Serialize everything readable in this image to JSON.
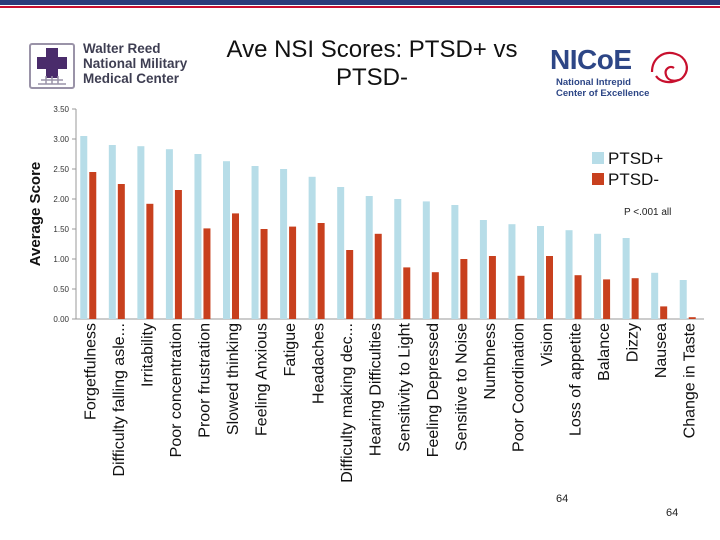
{
  "header": {
    "left_logo": {
      "line1": "Walter Reed",
      "line2": "National Military",
      "line3": "Medical Center",
      "icon": "cross-capitol-icon",
      "colors": {
        "cross": "#4a2c6b",
        "text": "#3e3e52"
      }
    },
    "right_logo": {
      "word": "NICoE",
      "line1": "National Intrepid",
      "line2": "Center of Excellence",
      "icon": "brain-spiral-icon",
      "colors": {
        "text": "#2d4686",
        "brain": "#c8102e"
      }
    },
    "bar_colors": {
      "navy": "#2b3c7a",
      "red": "#c8102e"
    }
  },
  "chart_data": {
    "type": "bar",
    "title": "Ave NSI Scores: PTSD+ vs PTSD-",
    "xlabel": "",
    "ylabel": "Average Score",
    "ylim": [
      0,
      3.5
    ],
    "yticks": [
      "0.00",
      "0.50",
      "1.00",
      "1.50",
      "2.00",
      "2.50",
      "3.00",
      "3.50"
    ],
    "annotation": "P <.001 all",
    "legend_position": "right",
    "categories": [
      "Forgetfulness",
      "Difficulty falling asle...",
      "Irritability",
      "Poor concentration",
      "Proor frustration",
      "Slowed thinking",
      "Feeling Anxious",
      "Fatigue",
      "Headaches",
      "Difficulty making dec...",
      "Hearing Difficulties",
      "Sensitivity to Light",
      "Feeling Depressed",
      "Sensitive to Noise",
      "Numbness",
      "Poor Coordination",
      "Vision",
      "Loss of appetite",
      "Balance",
      "Dizzy",
      "Nausea",
      "Change in Taste"
    ],
    "series": [
      {
        "name": "PTSD+",
        "color": "#b7dde8",
        "values": [
          3.05,
          2.9,
          2.88,
          2.83,
          2.75,
          2.63,
          2.55,
          2.5,
          2.37,
          2.2,
          2.05,
          2.0,
          1.96,
          1.9,
          1.65,
          1.58,
          1.55,
          1.48,
          1.42,
          1.35,
          0.77,
          0.65
        ]
      },
      {
        "name": "PTSD-",
        "color": "#c8401e",
        "values": [
          2.45,
          2.25,
          1.92,
          2.15,
          1.51,
          1.76,
          1.5,
          1.54,
          1.6,
          1.15,
          1.42,
          0.86,
          0.78,
          1.0,
          1.05,
          0.72,
          1.05,
          0.73,
          0.66,
          0.68,
          0.21,
          0.03
        ]
      }
    ]
  },
  "footer": {
    "page_number_inner": "64",
    "page_number": "64"
  }
}
